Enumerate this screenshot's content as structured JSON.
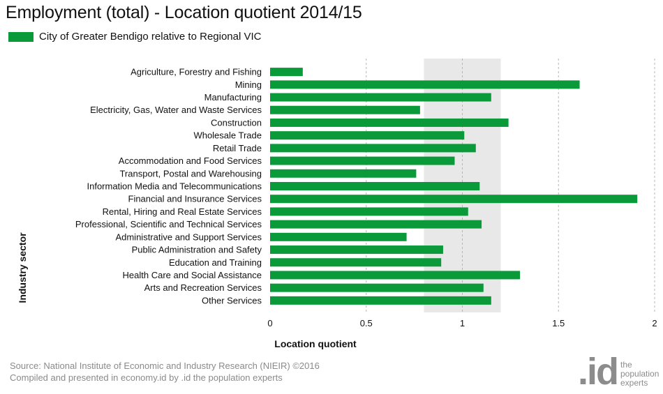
{
  "chart_data": {
    "type": "bar",
    "orientation": "horizontal",
    "title": "Employment (total) - Location quotient 2014/15",
    "xlabel": "Location quotient",
    "ylabel": "Industry sector",
    "xlim": [
      0,
      2
    ],
    "xticks": [
      0,
      0.5,
      1,
      1.5,
      2
    ],
    "xtick_labels": [
      "0",
      "0.5",
      "1",
      "1.5",
      "2"
    ],
    "grid": "vertical dashed",
    "legend_position": "top-left",
    "highlight_band": [
      0.8,
      1.2
    ],
    "highlight_color": "#e8e8e8",
    "bar_color": "#0a9a3a",
    "categories": [
      "Agriculture, Forestry and Fishing",
      "Mining",
      "Manufacturing",
      "Electricity, Gas, Water and Waste Services",
      "Construction",
      "Wholesale Trade",
      "Retail Trade",
      "Accommodation and Food Services",
      "Transport, Postal and Warehousing",
      "Information Media and Telecommunications",
      "Financial and Insurance Services",
      "Rental, Hiring and Real Estate Services",
      "Professional, Scientific and Technical Services",
      "Administrative and Support Services",
      "Public Administration and Safety",
      "Education and Training",
      "Health Care and Social Assistance",
      "Arts and Recreation Services",
      "Other Services"
    ],
    "series": [
      {
        "name": "City of Greater Bendigo relative to Regional VIC",
        "values": [
          0.17,
          1.61,
          1.15,
          0.78,
          1.24,
          1.01,
          1.07,
          0.96,
          0.76,
          1.09,
          1.91,
          1.03,
          1.1,
          0.71,
          0.9,
          0.89,
          1.3,
          1.11,
          1.15
        ]
      }
    ]
  },
  "footer": {
    "source_line1": "Source: National Institute of Economic and Industry Research (NIEIR) ©2016",
    "source_line2": "Compiled and presented in economy.id by .id the population experts"
  },
  "logo": {
    "mark": ".id",
    "line1": "the",
    "line2": "population",
    "line3": "experts"
  }
}
